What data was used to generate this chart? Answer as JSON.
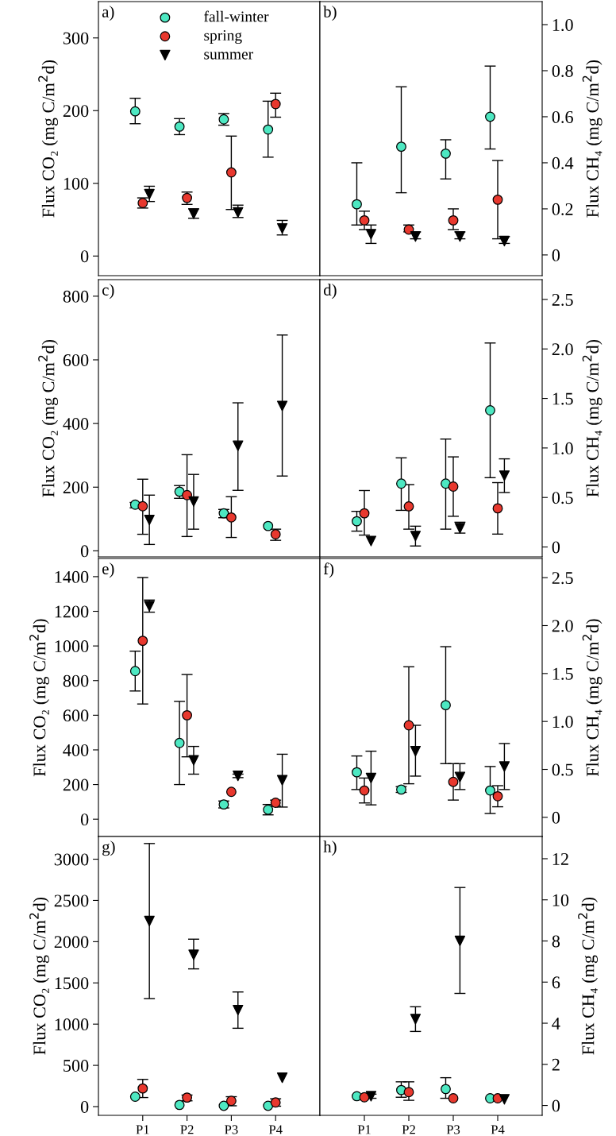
{
  "chart_data": [
    {
      "type": "scatter",
      "title": "a)",
      "ylabel": "Flux CO₂ (mg C/m$^{2}$d)",
      "categories": [
        null,
        null,
        null,
        null
      ],
      "ylim": [
        -27,
        350
      ],
      "yticks": [
        0,
        100,
        200,
        300
      ],
      "tick_labels": "y",
      "legend": "top",
      "series": [
        {
          "name": "fall-winter",
          "color": "#4de8c2",
          "marker": "circle",
          "values": [
            199,
            178,
            188,
            174
          ],
          "errors": [
            [
              182,
              217
            ],
            [
              167,
              189
            ],
            [
              180,
              196
            ],
            [
              136,
              213
            ]
          ]
        },
        {
          "name": "spring",
          "color": "#e8382e",
          "marker": "circle",
          "values": [
            73,
            80,
            115,
            209
          ],
          "errors": [
            [
              66,
              80
            ],
            [
              71,
              88
            ],
            [
              64,
              165
            ],
            [
              191,
              224
            ]
          ]
        },
        {
          "name": "summer",
          "color": "#000000",
          "marker": "triangle",
          "values": [
            85,
            58,
            60,
            38
          ],
          "errors": [
            [
              75,
              96
            ],
            [
              52,
              65
            ],
            [
              53,
              70
            ],
            [
              29,
              49
            ]
          ]
        }
      ]
    },
    {
      "type": "scatter",
      "title": "b)",
      "y2label": "Flux CH₄ (mg C/m$^{2}$d)",
      "categories": [
        null,
        null,
        null,
        null
      ],
      "y2lim": [
        -0.09,
        1.1
      ],
      "y2ticks": [
        0,
        {
          "value": 0.2,
          "label": "0.2"
        },
        {
          "value": 0.4,
          "label": "0.4"
        },
        {
          "value": 0.6,
          "label": "0.6"
        },
        {
          "value": 0.8,
          "label": "0.8"
        },
        {
          "value": 1.0,
          "label": "1.0"
        }
      ],
      "tick_labels": "y",
      "series": [
        {
          "color": "#4de8c2",
          "marker": "circle",
          "axis": "y2",
          "values": [
            0.22,
            0.47,
            0.44,
            0.6
          ],
          "errors": [
            [
              0.13,
              0.4
            ],
            [
              0.27,
              0.73
            ],
            [
              0.33,
              0.5
            ],
            [
              0.46,
              0.82
            ]
          ]
        },
        {
          "color": "#e8382e",
          "marker": "circle",
          "axis": "y2",
          "values": [
            0.15,
            0.11,
            0.15,
            0.24
          ],
          "errors": [
            [
              0.11,
              0.19
            ],
            [
              0.1,
              0.13
            ],
            [
              0.11,
              0.2
            ],
            [
              0.07,
              0.41
            ]
          ]
        },
        {
          "color": "#000000",
          "marker": "triangle",
          "axis": "y2",
          "values": [
            0.09,
            0.08,
            0.08,
            0.06
          ],
          "errors": [
            [
              0.05,
              0.13
            ],
            [
              0.07,
              0.1
            ],
            [
              0.07,
              0.1
            ],
            [
              0.05,
              0.08
            ]
          ]
        }
      ]
    },
    {
      "type": "scatter",
      "title": "c)",
      "ylabel": "Flux CO₂ (mg C/m$^{2}$d)",
      "categories": [
        null,
        null,
        null,
        null
      ],
      "ylim": [
        -19,
        852
      ],
      "yticks": [
        0,
        200,
        400,
        600,
        800
      ],
      "tick_labels": "y",
      "series": [
        {
          "color": "#4de8c2",
          "marker": "circle",
          "values": [
            145,
            186,
            118,
            78
          ],
          "errors": [
            [
              135,
              152
            ],
            [
              165,
              205
            ],
            [
              104,
              130
            ],
            null
          ]
        },
        {
          "color": "#e8382e",
          "marker": "circle",
          "values": [
            140,
            175,
            105,
            52
          ],
          "errors": [
            [
              52,
              225
            ],
            [
              45,
              302
            ],
            [
              42,
              170
            ],
            [
              33,
              68
            ]
          ]
        },
        {
          "color": "#000000",
          "marker": "triangle",
          "values": [
            97,
            155,
            330,
            455
          ],
          "errors": [
            [
              20,
              175
            ],
            [
              68,
              240
            ],
            [
              190,
              465
            ],
            [
              235,
              678
            ]
          ]
        }
      ]
    },
    {
      "type": "scatter",
      "title": "d)",
      "y2label": "Flux CH₄ (mg C/m$^{2}$d)",
      "categories": [
        null,
        null,
        null,
        null
      ],
      "y2lim": [
        -0.1,
        2.7
      ],
      "y2ticks": [
        0,
        0.5,
        {
          "value": 1.0,
          "label": "1.0"
        },
        1.5,
        {
          "value": 2.0,
          "label": "2.0"
        },
        2.5
      ],
      "tick_labels": "y",
      "series": [
        {
          "color": "#4de8c2",
          "marker": "circle",
          "axis": "y2",
          "values": [
            0.26,
            0.64,
            0.64,
            1.38
          ],
          "errors": [
            [
              0.16,
              0.36
            ],
            [
              0.37,
              0.9
            ],
            [
              0.18,
              1.09
            ],
            [
              0.7,
              2.06
            ]
          ]
        },
        {
          "color": "#e8382e",
          "marker": "circle",
          "axis": "y2",
          "values": [
            0.34,
            0.41,
            0.61,
            0.39
          ],
          "errors": [
            [
              0.12,
              0.57
            ],
            [
              0.18,
              0.63
            ],
            [
              0.31,
              0.91
            ],
            [
              0.13,
              0.65
            ]
          ]
        },
        {
          "color": "#000000",
          "marker": "triangle",
          "axis": "y2",
          "values": [
            0.06,
            0.11,
            0.19,
            0.72
          ],
          "errors": [
            null,
            [
              0.01,
              0.21
            ],
            [
              0.14,
              0.25
            ],
            [
              0.55,
              0.89
            ]
          ]
        }
      ]
    },
    {
      "type": "scatter",
      "title": "e)",
      "ylabel": "Flux CO₂ (mg C/m$^{2}$d)",
      "categories": [
        null,
        null,
        null,
        null
      ],
      "ylim": [
        -100,
        1505
      ],
      "yticks": [
        0,
        200,
        400,
        600,
        800,
        1000,
        1200,
        1400
      ],
      "tick_labels": "y",
      "series": [
        {
          "color": "#4de8c2",
          "marker": "circle",
          "values": [
            855,
            440,
            85,
            55
          ],
          "errors": [
            [
              740,
              970
            ],
            [
              200,
              680
            ],
            [
              65,
              105
            ],
            [
              25,
              85
            ]
          ]
        },
        {
          "color": "#e8382e",
          "marker": "circle",
          "values": [
            1030,
            600,
            158,
            95
          ],
          "errors": [
            [
              665,
              1395
            ],
            [
              360,
              835
            ],
            null,
            [
              75,
              110
            ]
          ]
        },
        {
          "color": "#000000",
          "marker": "triangle",
          "values": [
            1230,
            340,
            250,
            225
          ],
          "errors": [
            [
              1195,
              1265
            ],
            [
              260,
              420
            ],
            [
              240,
              260
            ],
            [
              70,
              375
            ]
          ]
        }
      ]
    },
    {
      "type": "scatter",
      "title": "f)",
      "y2label": "Flux CH₄ (mg C/m$^{2}$d)",
      "categories": [
        null,
        null,
        null,
        null
      ],
      "y2lim": [
        -0.2,
        2.7
      ],
      "y2ticks": [
        0,
        0.5,
        {
          "value": 1.0,
          "label": "1.0"
        },
        1.5,
        {
          "value": 2.0,
          "label": "2.0"
        },
        2.5
      ],
      "tick_labels": "y",
      "series": [
        {
          "color": "#4de8c2",
          "marker": "circle",
          "axis": "y2",
          "values": [
            0.47,
            0.29,
            1.17,
            0.28
          ],
          "errors": [
            [
              0.29,
              0.64
            ],
            [
              0.26,
              0.32
            ],
            [
              0.56,
              1.78
            ],
            [
              0.04,
              0.53
            ]
          ]
        },
        {
          "color": "#e8382e",
          "marker": "circle",
          "axis": "y2",
          "values": [
            0.28,
            0.96,
            0.37,
            0.22
          ],
          "errors": [
            [
              0.15,
              0.41
            ],
            [
              0.35,
              1.57
            ],
            [
              0.18,
              0.56
            ],
            [
              0.11,
              0.33
            ]
          ]
        },
        {
          "color": "#000000",
          "marker": "triangle",
          "axis": "y2",
          "values": [
            0.41,
            0.69,
            0.42,
            0.53
          ],
          "errors": [
            [
              0.13,
              0.69
            ],
            [
              0.43,
              0.96
            ],
            [
              0.29,
              0.56
            ],
            [
              0.29,
              0.77
            ]
          ]
        }
      ]
    },
    {
      "type": "scatter",
      "title": "g)",
      "ylabel": "Flux CO₂ (mg C/m$^{2}$d)",
      "categories": [
        "P1",
        "P2",
        "P3",
        "P4"
      ],
      "ylim": [
        -106,
        3275
      ],
      "yticks": [
        0,
        500,
        1000,
        1500,
        2000,
        2500,
        3000
      ],
      "series": [
        {
          "color": "#4de8c2",
          "marker": "circle",
          "values": [
            120,
            20,
            10,
            10
          ]
        },
        {
          "color": "#e8382e",
          "marker": "circle",
          "values": [
            220,
            110,
            70,
            50
          ],
          "errors": [
            [
              110,
              330
            ],
            [
              70,
              140
            ],
            [
              10,
              120
            ],
            [
              5,
              95
            ]
          ]
        },
        {
          "color": "#000000",
          "marker": "triangle",
          "values": [
            2250,
            1840,
            1170,
            350
          ],
          "errors": [
            [
              1310,
              3190
            ],
            [
              1670,
              2030
            ],
            [
              950,
              1390
            ],
            null
          ]
        }
      ]
    },
    {
      "type": "scatter",
      "title": "h)",
      "y2label": "Flux CH₄ (mg C/m$^{2}$d)",
      "categories": [
        "P1",
        "P2",
        "P3",
        "P4"
      ],
      "y2lim": [
        -0.48,
        13.08
      ],
      "y2ticks": [
        0,
        2,
        4,
        6,
        8,
        10,
        12
      ],
      "series": [
        {
          "color": "#4de8c2",
          "marker": "circle",
          "axis": "y2",
          "values": [
            0.45,
            0.75,
            0.8,
            0.35
          ],
          "errors": [
            null,
            [
              0.4,
              1.15
            ],
            [
              0.35,
              1.35
            ],
            null
          ]
        },
        {
          "color": "#e8382e",
          "marker": "circle",
          "axis": "y2",
          "values": [
            0.4,
            0.65,
            0.35,
            0.35
          ],
          "errors": [
            null,
            [
              0.25,
              1.15
            ],
            null,
            null
          ]
        },
        {
          "color": "#000000",
          "marker": "triangle",
          "axis": "y2",
          "values": [
            0.45,
            4.2,
            8.0,
            0.3
          ],
          "errors": [
            [
              0.35,
              0.55
            ],
            [
              3.6,
              4.8
            ],
            [
              5.45,
              10.6
            ],
            null
          ]
        }
      ]
    }
  ]
}
